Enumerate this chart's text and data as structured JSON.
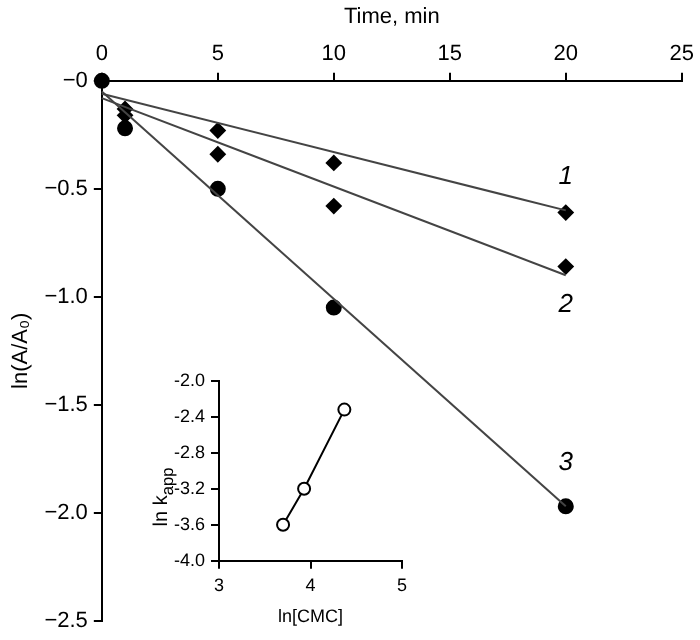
{
  "chart_data": [
    {
      "type": "scatter",
      "xlabel": "Time, min",
      "ylabel": "ln(A/A₀)",
      "xlim": [
        0,
        25
      ],
      "xticks": [
        0,
        5,
        10,
        15,
        20,
        25
      ],
      "ylim": [
        -2.5,
        0
      ],
      "yticks": [
        {
          "value": 0,
          "label": "−0"
        },
        {
          "value": -0.5,
          "label": "−0.5"
        },
        {
          "value": -1,
          "label": "−1.0"
        },
        {
          "value": -1.5,
          "label": "−1.5"
        },
        {
          "value": -2,
          "label": "−2.0"
        },
        {
          "value": -2.5,
          "label": "−2.5"
        }
      ],
      "grid": false,
      "legend": false,
      "series": [
        {
          "type": "line",
          "marker": "none",
          "color": "#444444",
          "x": [
            0,
            20
          ],
          "values": [
            -0.06,
            -0.6
          ]
        },
        {
          "type": "line",
          "marker": "none",
          "color": "#444444",
          "x": [
            0,
            20
          ],
          "values": [
            -0.08,
            -0.9
          ]
        },
        {
          "type": "line",
          "marker": "none",
          "color": "#444444",
          "x": [
            0,
            20
          ],
          "values": [
            -0.05,
            -1.97
          ]
        },
        {
          "marker": "diamond",
          "color": "#000000",
          "x": [
            1,
            5,
            10,
            20
          ],
          "values": [
            -0.13,
            -0.23,
            -0.38,
            -0.61
          ]
        },
        {
          "marker": "diamond",
          "color": "#000000",
          "x": [
            1,
            5,
            10,
            20
          ],
          "values": [
            -0.16,
            -0.34,
            -0.58,
            -0.86
          ]
        },
        {
          "marker": "circle",
          "color": "#000000",
          "x": [
            0,
            1,
            5,
            10,
            20
          ],
          "values": [
            0,
            -0.22,
            -0.5,
            -1.05,
            -1.97
          ]
        }
      ],
      "annotations": [
        "1",
        "2",
        "3"
      ]
    },
    {
      "type": "line",
      "xlabel": "ln[CMC]",
      "ylabel": "ln k$_{app}$",
      "xlim": [
        3,
        5
      ],
      "xticks": [
        3,
        4,
        5
      ],
      "ylim": [
        -4,
        -2
      ],
      "yticks": [
        {
          "value": -2,
          "label": "-2.0"
        },
        {
          "value": -2.4,
          "label": "-2.4"
        },
        {
          "value": -2.8,
          "label": "-2.8"
        },
        {
          "value": -3.2,
          "label": "-3.2"
        },
        {
          "value": -3.6,
          "label": "-3.6"
        },
        {
          "value": -4,
          "label": "-4.0"
        }
      ],
      "grid": false,
      "legend": false,
      "marker": "circle",
      "series": [
        {
          "color": "#000000",
          "x": [
            3.7,
            3.93,
            4.37
          ],
          "values": [
            -3.6,
            -3.2,
            -2.32
          ]
        }
      ]
    }
  ]
}
